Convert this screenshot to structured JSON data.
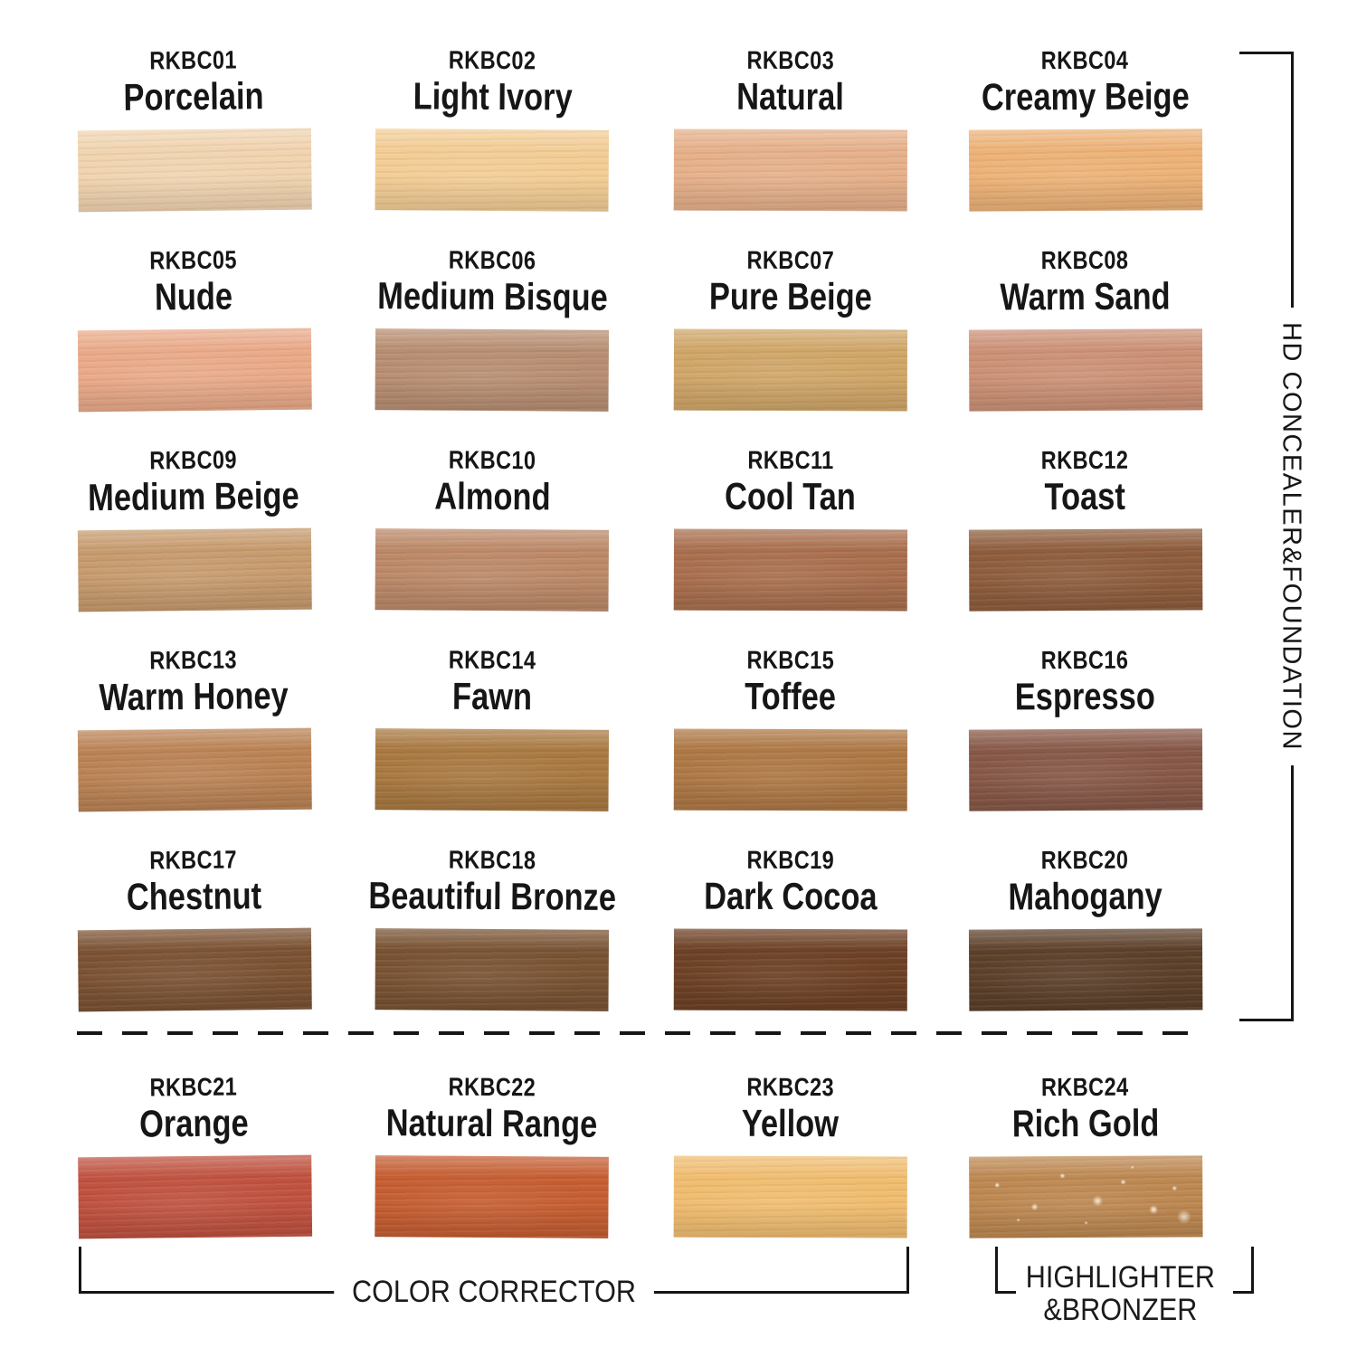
{
  "page": {
    "background": "#ffffff",
    "ink_color": "#161616"
  },
  "groups": {
    "hd_concealer_foundation": {
      "label": "HD CONCEALER&FOUNDATION"
    },
    "color_corrector": {
      "label": "COLOR CORRECTOR"
    },
    "highlighter_bronzer": {
      "label_line1": "HIGHLIGHTER",
      "label_line2": "&BRONZER"
    }
  },
  "swatches": [
    {
      "code": "RKBC01",
      "name": "Porcelain",
      "color": "#f1d4b0"
    },
    {
      "code": "RKBC02",
      "name": "Light Ivory",
      "color": "#f3cd95"
    },
    {
      "code": "RKBC03",
      "name": "Natural",
      "color": "#e6b08a"
    },
    {
      "code": "RKBC04",
      "name": "Creamy Beige",
      "color": "#edb277"
    },
    {
      "code": "RKBC05",
      "name": "Nude",
      "color": "#eaaa89"
    },
    {
      "code": "RKBC06",
      "name": "Medium Bisque",
      "color": "#b88e72"
    },
    {
      "code": "RKBC07",
      "name": "Pure Beige",
      "color": "#d0a668"
    },
    {
      "code": "RKBC08",
      "name": "Warm Sand",
      "color": "#cc9176"
    },
    {
      "code": "RKBC09",
      "name": "Medium Beige",
      "color": "#c79b6e"
    },
    {
      "code": "RKBC10",
      "name": "Almond",
      "color": "#bc8968"
    },
    {
      "code": "RKBC11",
      "name": "Cool Tan",
      "color": "#a96f4e"
    },
    {
      "code": "RKBC12",
      "name": "Toast",
      "color": "#8e5d3d"
    },
    {
      "code": "RKBC13",
      "name": "Warm Honey",
      "color": "#bb8355"
    },
    {
      "code": "RKBC14",
      "name": "Fawn",
      "color": "#a97941"
    },
    {
      "code": "RKBC15",
      "name": "Toffee",
      "color": "#ae7845"
    },
    {
      "code": "RKBC16",
      "name": "Espresso",
      "color": "#875847"
    },
    {
      "code": "RKBC17",
      "name": "Chestnut",
      "color": "#7b5233"
    },
    {
      "code": "RKBC18",
      "name": "Beautiful Bronze",
      "color": "#795333"
    },
    {
      "code": "RKBC19",
      "name": "Dark Cocoa",
      "color": "#6d4125"
    },
    {
      "code": "RKBC20",
      "name": "Mahogany",
      "color": "#5c402a"
    },
    {
      "code": "RKBC21",
      "name": "Orange",
      "color": "#c05240"
    },
    {
      "code": "RKBC22",
      "name": "Natural Range",
      "color": "#c65e32"
    },
    {
      "code": "RKBC23",
      "name": "Yellow",
      "color": "#f0bd70"
    },
    {
      "code": "RKBC24",
      "name": "Rich Gold",
      "color": "#bd8851",
      "finish": "shimmer"
    }
  ]
}
